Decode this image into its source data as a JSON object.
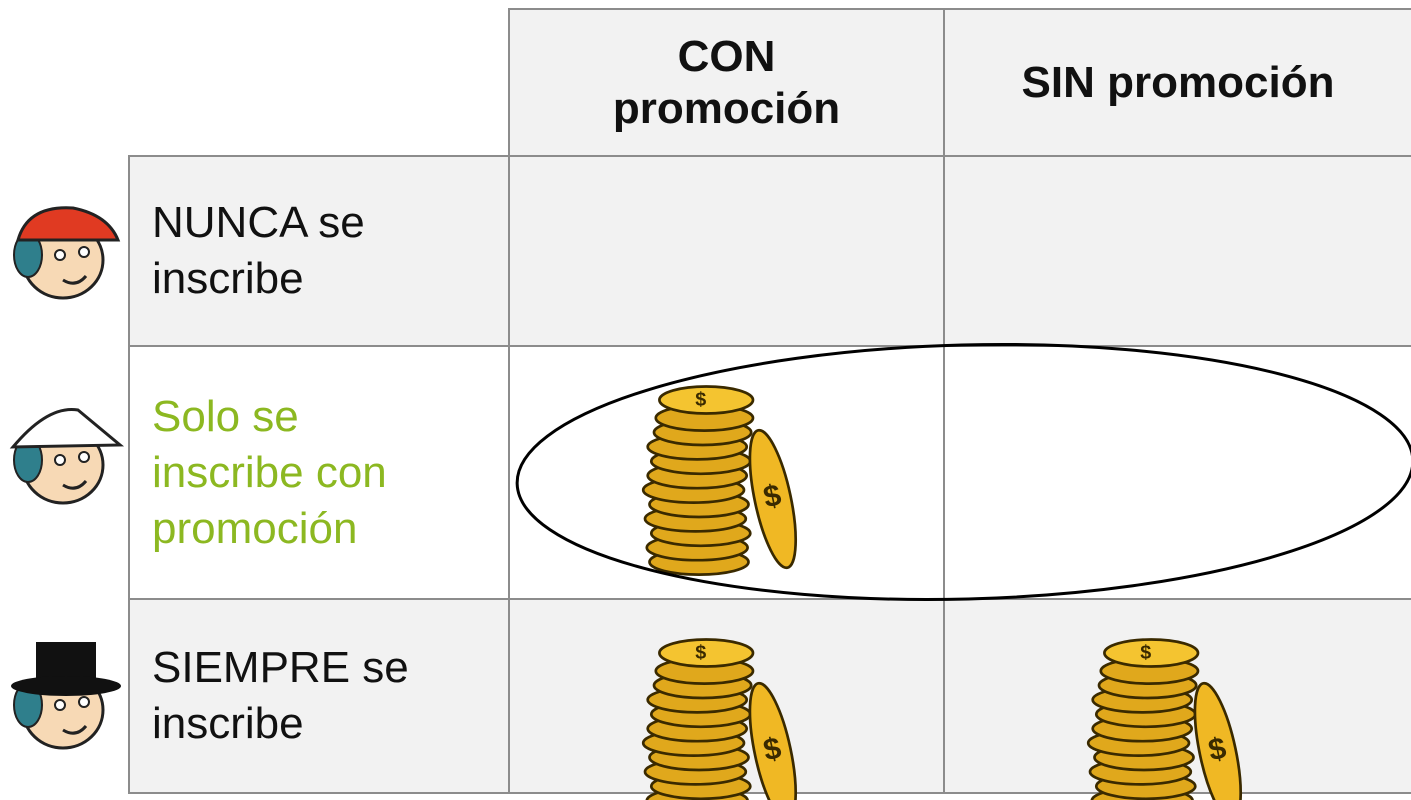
{
  "table": {
    "columns": [
      "CON promoción",
      "SIN promoción"
    ],
    "rows": [
      {
        "label": "NUNCA se inscribe"
      },
      {
        "label": "Solo se inscribe con promoción"
      },
      {
        "label": "SIEMPRE se inscribe"
      }
    ]
  }
}
